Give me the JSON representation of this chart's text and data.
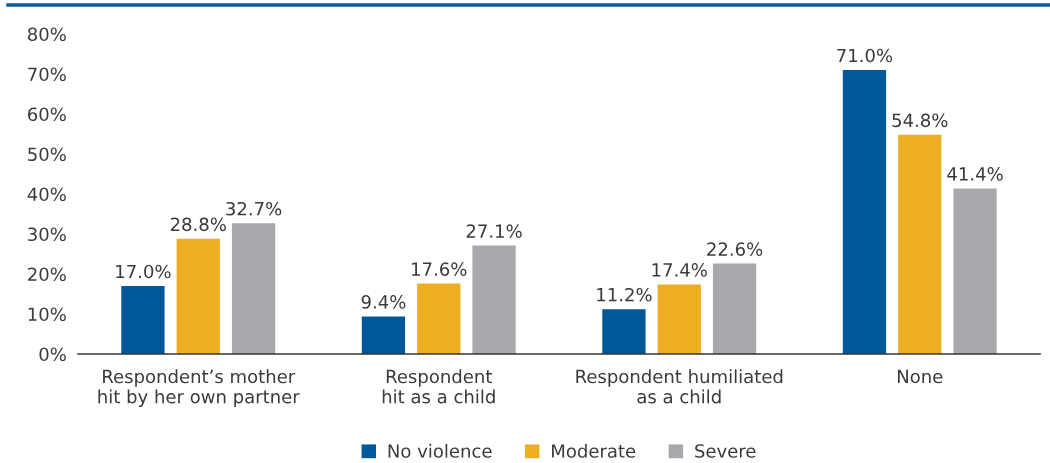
{
  "chart_data": {
    "type": "bar",
    "categories": [
      "Respondent’s mother\nhit by her own partner",
      "Respondent\nhit as a child",
      "Respondent humiliated\nas a child",
      "None"
    ],
    "series": [
      {
        "name": "No violence",
        "color": "#00589b",
        "values": [
          17.0,
          9.4,
          11.2,
          71.0
        ],
        "value_labels": [
          "17.0%",
          "9.4%",
          "11.2%",
          "71.0%"
        ]
      },
      {
        "name": "Moderate",
        "color": "#eeae24",
        "values": [
          28.8,
          17.6,
          17.4,
          54.8
        ],
        "value_labels": [
          "28.8%",
          "17.6%",
          "17.4%",
          "54.8%"
        ]
      },
      {
        "name": "Severe",
        "color": "#a7a8ac",
        "values": [
          32.7,
          27.1,
          22.6,
          41.4
        ],
        "value_labels": [
          "32.7%",
          "27.1%",
          "22.6%",
          "41.4%"
        ]
      }
    ],
    "ylim": [
      0,
      80
    ],
    "yticks": [
      {
        "value": 0,
        "label": "0%"
      },
      {
        "value": 10,
        "label": "10%"
      },
      {
        "value": 20,
        "label": "20%"
      },
      {
        "value": 30,
        "label": "30%"
      },
      {
        "value": 40,
        "label": "40%"
      },
      {
        "value": 50,
        "label": "50%"
      },
      {
        "value": 60,
        "label": "60%"
      },
      {
        "value": 70,
        "label": "70%"
      },
      {
        "value": 80,
        "label": "80%"
      }
    ],
    "legend": "bottom"
  }
}
